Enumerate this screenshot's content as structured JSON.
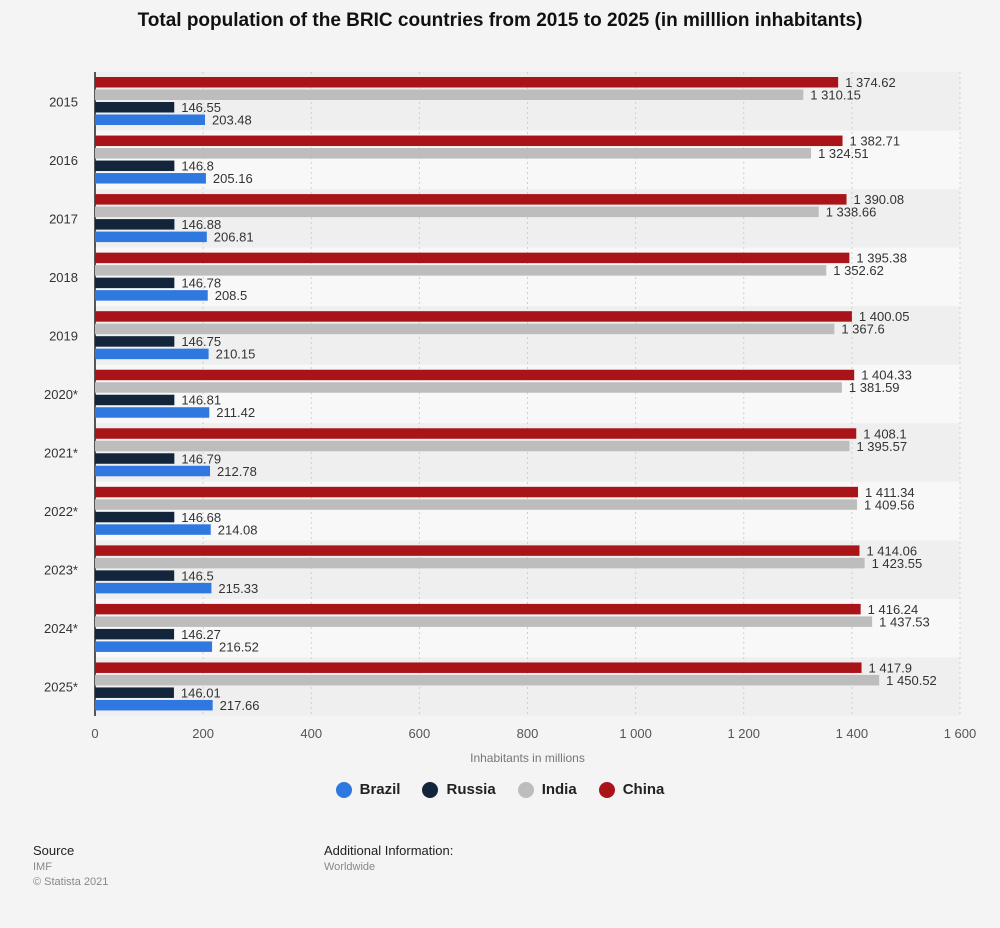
{
  "chart_data": {
    "type": "bar",
    "orientation": "horizontal",
    "title": "Total population of the BRIC countries from 2015 to 2025 (in milllion inhabitants)",
    "xlabel": "Inhabitants in millions",
    "ylabel": "",
    "xlim": [
      0,
      1600
    ],
    "xticks": [
      "0",
      "200",
      "400",
      "600",
      "800",
      "1 000",
      "1 200",
      "1 400",
      "1 600"
    ],
    "grid": true,
    "legend_position": "bottom",
    "categories": [
      "2015",
      "2016",
      "2017",
      "2018",
      "2019",
      "2020*",
      "2021*",
      "2022*",
      "2023*",
      "2024*",
      "2025*"
    ],
    "series": [
      {
        "name": "China",
        "color": "#a91419",
        "values": [
          1374.62,
          1382.71,
          1390.08,
          1395.38,
          1400.05,
          1404.33,
          1408.1,
          1411.34,
          1414.06,
          1416.24,
          1417.9
        ],
        "labels": [
          "1 374.62",
          "1 382.71",
          "1 390.08",
          "1 395.38",
          "1 400.05",
          "1 404.33",
          "1 408.1",
          "1 411.34",
          "1 414.06",
          "1 416.24",
          "1 417.9"
        ]
      },
      {
        "name": "India",
        "color": "#bdbdbd",
        "values": [
          1310.15,
          1324.51,
          1338.66,
          1352.62,
          1367.6,
          1381.59,
          1395.57,
          1409.56,
          1423.55,
          1437.53,
          1450.52
        ],
        "labels": [
          "1 310.15",
          "1 324.51",
          "1 338.66",
          "1 352.62",
          "1 367.6",
          "1 381.59",
          "1 395.57",
          "1 409.56",
          "1 423.55",
          "1 437.53",
          "1 450.52"
        ]
      },
      {
        "name": "Russia",
        "color": "#13253b",
        "values": [
          146.55,
          146.8,
          146.88,
          146.78,
          146.75,
          146.81,
          146.79,
          146.68,
          146.5,
          146.27,
          146.01
        ],
        "labels": [
          "146.55",
          "146.8",
          "146.88",
          "146.78",
          "146.75",
          "146.81",
          "146.79",
          "146.68",
          "146.5",
          "146.27",
          "146.01"
        ]
      },
      {
        "name": "Brazil",
        "color": "#2f78e0",
        "values": [
          203.48,
          205.16,
          206.81,
          208.5,
          210.15,
          211.42,
          212.78,
          214.08,
          215.33,
          216.52,
          217.66
        ],
        "labels": [
          "203.48",
          "205.16",
          "206.81",
          "208.5",
          "210.15",
          "211.42",
          "212.78",
          "214.08",
          "215.33",
          "216.52",
          "217.66"
        ]
      }
    ]
  },
  "legend": [
    {
      "name": "Brazil",
      "color": "#2f78e0"
    },
    {
      "name": "Russia",
      "color": "#13253b"
    },
    {
      "name": "India",
      "color": "#bdbdbd"
    },
    {
      "name": "China",
      "color": "#a91419"
    }
  ],
  "footer": {
    "source_label": "Source",
    "source_value": "IMF",
    "copyright": "© Statista 2021",
    "info_label": "Additional Information:",
    "info_value": "Worldwide"
  }
}
